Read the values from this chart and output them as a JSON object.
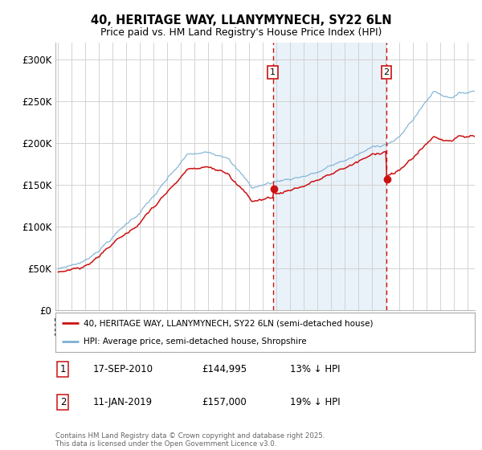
{
  "title": "40, HERITAGE WAY, LLANYMYNECH, SY22 6LN",
  "subtitle": "Price paid vs. HM Land Registry's House Price Index (HPI)",
  "legend_line1": "40, HERITAGE WAY, LLANYMYNECH, SY22 6LN (semi-detached house)",
  "legend_line2": "HPI: Average price, semi-detached house, Shropshire",
  "marker1_date": "17-SEP-2010",
  "marker1_price": "£144,995",
  "marker1_pct": "13% ↓ HPI",
  "marker2_date": "11-JAN-2019",
  "marker2_price": "£157,000",
  "marker2_pct": "19% ↓ HPI",
  "footnote": "Contains HM Land Registry data © Crown copyright and database right 2025.\nThis data is licensed under the Open Government Licence v3.0.",
  "hpi_color": "#7ab0d4",
  "price_color": "#cc1111",
  "marker_color": "#cc1111",
  "bg_shade_color": "#ddeaf5",
  "ylim": [
    0,
    320000
  ],
  "yticks": [
    0,
    50000,
    100000,
    150000,
    200000,
    250000,
    300000
  ],
  "ytick_labels": [
    "£0",
    "£50K",
    "£100K",
    "£150K",
    "£200K",
    "£250K",
    "£300K"
  ],
  "x_start_year": 1995,
  "x_end_year": 2025,
  "marker1_x": 2010.72,
  "marker2_x": 2019.03,
  "sale1_price": 144995,
  "sale2_price": 157000
}
